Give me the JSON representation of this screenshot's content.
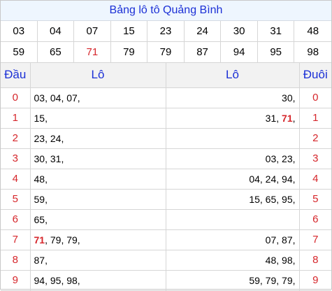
{
  "title": "Bảng lô tô Quảng Bình",
  "numbers": [
    "03",
    "04",
    "07",
    "15",
    "23",
    "24",
    "30",
    "31",
    "48",
    "59",
    "65",
    "71",
    "79",
    "79",
    "87",
    "94",
    "95",
    "98"
  ],
  "highlight_numbers": [
    "71"
  ],
  "table": {
    "headers": {
      "dau": "Đầu",
      "lo_left": "Lô",
      "lo_right": "Lô",
      "duoi": "Đuôi"
    },
    "rows": [
      {
        "dau": "0",
        "lo_left": [
          "03",
          "04",
          "07"
        ],
        "lo_right": [
          "30"
        ],
        "duoi": "0"
      },
      {
        "dau": "1",
        "lo_left": [
          "15"
        ],
        "lo_right": [
          "31",
          "71"
        ],
        "duoi": "1"
      },
      {
        "dau": "2",
        "lo_left": [
          "23",
          "24"
        ],
        "lo_right": [],
        "duoi": "2"
      },
      {
        "dau": "3",
        "lo_left": [
          "30",
          "31"
        ],
        "lo_right": [
          "03",
          "23"
        ],
        "duoi": "3"
      },
      {
        "dau": "4",
        "lo_left": [
          "48"
        ],
        "lo_right": [
          "04",
          "24",
          "94"
        ],
        "duoi": "4"
      },
      {
        "dau": "5",
        "lo_left": [
          "59"
        ],
        "lo_right": [
          "15",
          "65",
          "95"
        ],
        "duoi": "5"
      },
      {
        "dau": "6",
        "lo_left": [
          "65"
        ],
        "lo_right": [],
        "duoi": "6"
      },
      {
        "dau": "7",
        "lo_left": [
          "71",
          "79",
          "79"
        ],
        "lo_right": [
          "07",
          "87"
        ],
        "duoi": "7"
      },
      {
        "dau": "8",
        "lo_left": [
          "87"
        ],
        "lo_right": [
          "48",
          "98"
        ],
        "duoi": "8"
      },
      {
        "dau": "9",
        "lo_left": [
          "94",
          "95",
          "98"
        ],
        "lo_right": [
          "59",
          "79",
          "79"
        ],
        "duoi": "9"
      }
    ]
  },
  "colors": {
    "heading_blue": "#1b30d6",
    "accent_red": "#d6262b",
    "title_bg": "#eef6fe",
    "header_bg": "#f2f2f2"
  }
}
